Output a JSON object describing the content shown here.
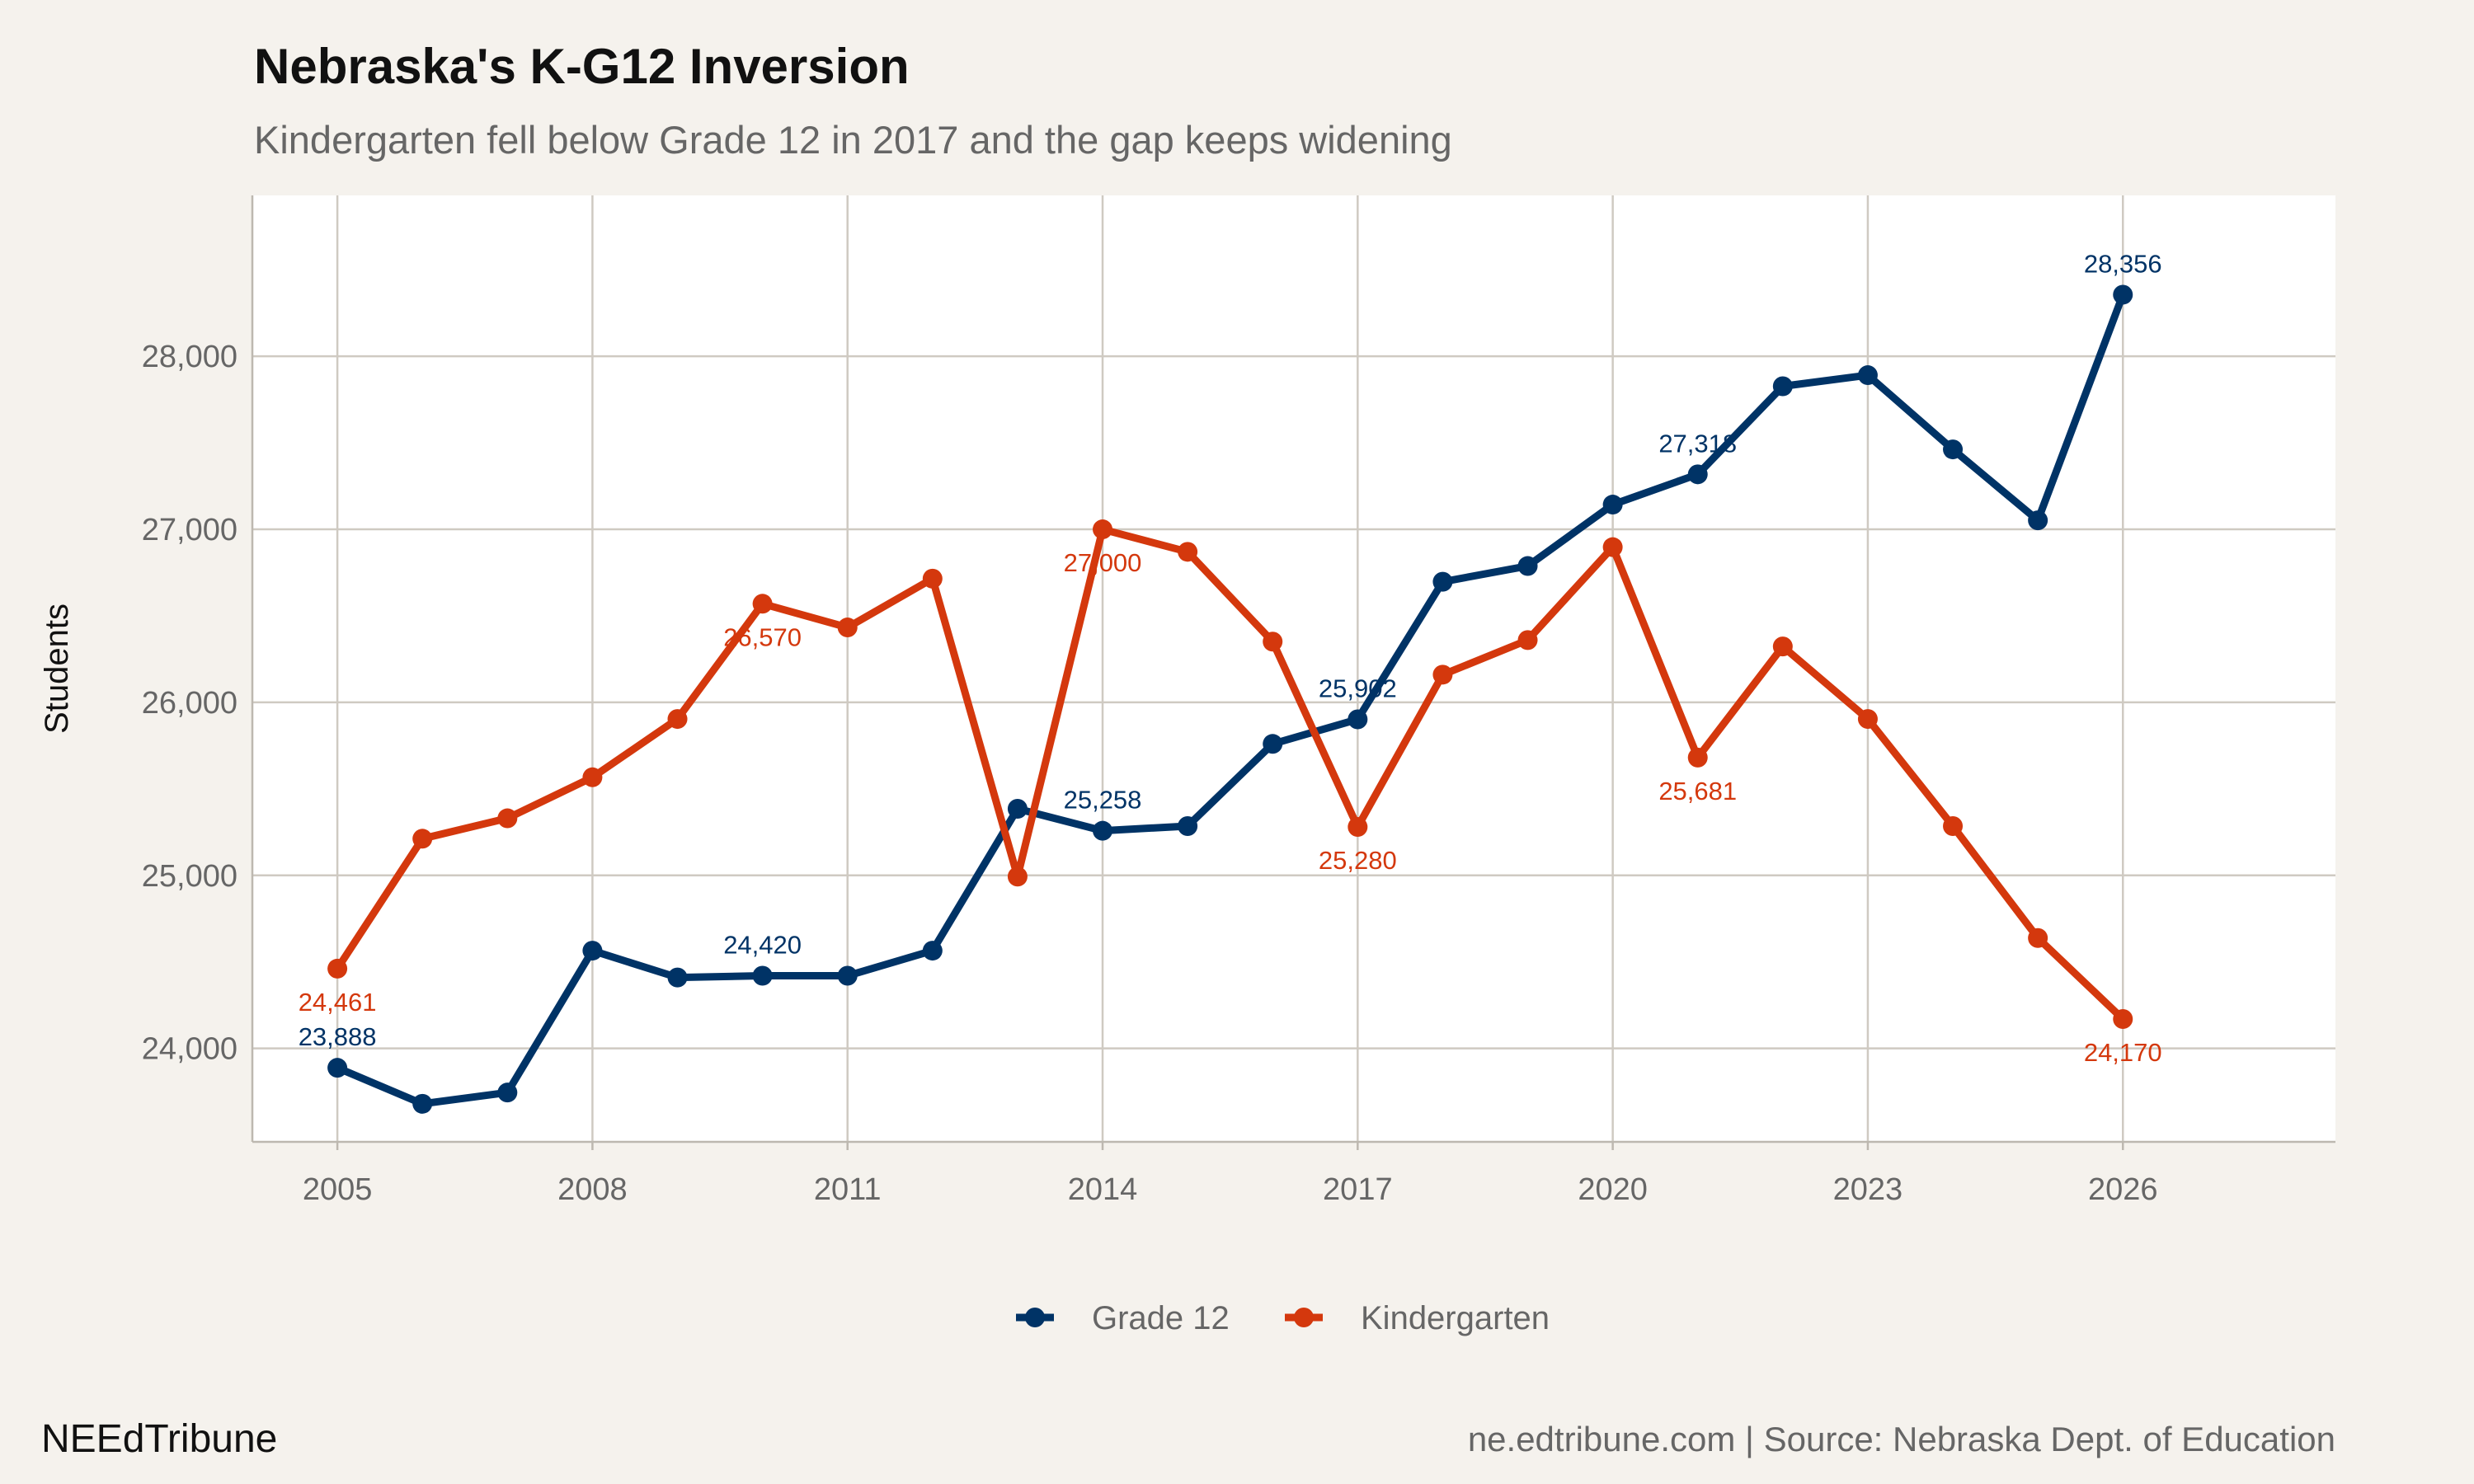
{
  "header": {
    "title": "Nebraska's K-G12 Inversion",
    "subtitle": "Kindergarten fell below Grade 12 in 2017 and the gap keeps widening"
  },
  "footer": {
    "brand": "NEEdTribune",
    "caption": "ne.edtribune.com | Source: Nebraska Dept. of Education"
  },
  "chart_data": {
    "type": "line",
    "title": "Nebraska's K-G12 Inversion",
    "subtitle": "Kindergarten fell below Grade 12 in 2017 and the gap keeps widening",
    "xlabel": "",
    "ylabel": "Students",
    "x": [
      2005,
      2006,
      2007,
      2008,
      2009,
      2010,
      2011,
      2012,
      2013,
      2014,
      2015,
      2016,
      2017,
      2018,
      2019,
      2020,
      2021,
      2022,
      2023,
      2024,
      2025,
      2026
    ],
    "xticks": [
      2005,
      2008,
      2011,
      2014,
      2017,
      2020,
      2023,
      2026
    ],
    "xtick_labels": [
      "2005",
      "2008",
      "2011",
      "2014",
      "2017",
      "2020",
      "2023",
      "2026"
    ],
    "yticks": [
      24000,
      25000,
      26000,
      27000,
      28000
    ],
    "ytick_labels": [
      "24,000",
      "25,000",
      "26,000",
      "27,000",
      "28,000"
    ],
    "xlim": [
      2004,
      2028.5
    ],
    "ylim": [
      23460,
      28930
    ],
    "grid": true,
    "legend_position": "bottom",
    "series": [
      {
        "name": "Grade 12",
        "color": "#003366",
        "values": [
          23888,
          23680,
          23745,
          24565,
          24410,
          24420,
          24420,
          24565,
          25385,
          25258,
          25285,
          25760,
          25902,
          26697,
          26788,
          27143,
          27318,
          27827,
          27891,
          27462,
          27052,
          28356
        ],
        "labels": [
          {
            "x": 2005,
            "text": "23,888"
          },
          {
            "x": 2010,
            "text": "24,420"
          },
          {
            "x": 2014,
            "text": "25,258"
          },
          {
            "x": 2017,
            "text": "25,902"
          },
          {
            "x": 2021,
            "text": "27,318"
          },
          {
            "x": 2026,
            "text": "28,356"
          }
        ],
        "label_side": "above"
      },
      {
        "name": "Kindergarten",
        "color": "#d4380d",
        "values": [
          24461,
          25212,
          25330,
          25567,
          25904,
          26570,
          26433,
          26715,
          24993,
          27000,
          26870,
          26351,
          25280,
          26160,
          26360,
          26897,
          25681,
          26323,
          25904,
          25285,
          24638,
          24170
        ],
        "labels": [
          {
            "x": 2005,
            "text": "24,461"
          },
          {
            "x": 2010,
            "text": "26,570"
          },
          {
            "x": 2014,
            "text": "27,000"
          },
          {
            "x": 2017,
            "text": "25,280"
          },
          {
            "x": 2021,
            "text": "25,681"
          },
          {
            "x": 2026,
            "text": "24,170"
          }
        ],
        "label_side": "below"
      }
    ]
  }
}
